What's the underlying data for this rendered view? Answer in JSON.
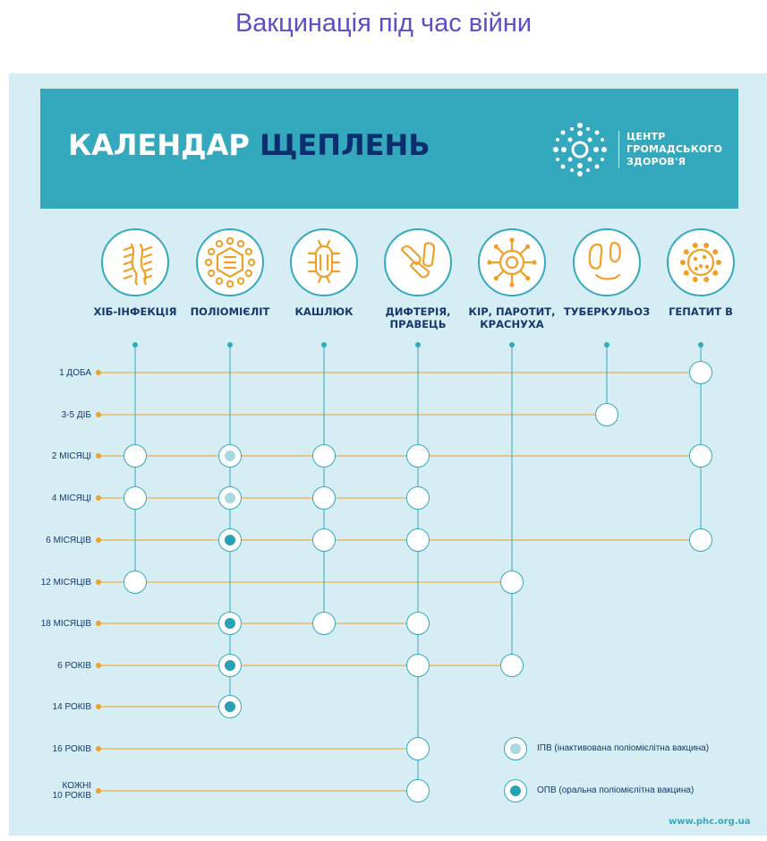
{
  "page_title": "Вакцинація під час війни",
  "header": {
    "title_part1": "КАЛЕНДАР",
    "title_part2": "ЩЕПЛЕНЬ",
    "logo_line1": "ЦЕНТР",
    "logo_line2": "ГРОМАДСЬКОГО",
    "logo_line3": "ЗДОРОВ'Я",
    "logo_icon": "phc-logo-icon"
  },
  "colors": {
    "teal": "#34a9be",
    "navy": "#0b2f6e",
    "panel": "#d6eef3",
    "orange": "#f0a027",
    "ipv_dot": "#a8d8e2",
    "opv_dot": "#2aa1b6",
    "title": "#5b4fc6"
  },
  "vaccines": [
    {
      "id": "hib",
      "label": "ХІБ-ІНФЕКЦІЯ",
      "icon": "hib-bacteria-icon"
    },
    {
      "id": "polio",
      "label": "ПОЛІОМІЄЛІТ",
      "icon": "polio-virus-icon"
    },
    {
      "id": "pertussis",
      "label": "КАШЛЮК",
      "icon": "pertussis-bacteria-icon"
    },
    {
      "id": "diphtheria",
      "label": "ДИФТЕРІЯ,\nПРАВЕЦЬ",
      "icon": "diphtheria-bacteria-icon"
    },
    {
      "id": "mmr",
      "label": "КІР, ПАРОТИТ,\nКРАСНУХА",
      "icon": "mmr-virus-icon"
    },
    {
      "id": "tb",
      "label": "ТУБЕРКУЛЬОЗ",
      "icon": "tuberculosis-bacteria-icon"
    },
    {
      "id": "hepb",
      "label": "ГЕПАТИТ В",
      "icon": "hepatitis-b-virus-icon"
    }
  ],
  "ages": [
    "1 ДОБА",
    "3-5 ДІБ",
    "2 МІСЯЦІ",
    "4 МІСЯЦІ",
    "6 МІСЯЦІВ",
    "12 МІСЯЦІВ",
    "18 МІСЯЦІВ",
    "6 РОКІВ",
    "14 РОКІВ",
    "16 РОКІВ",
    "КОЖНІ\n10 РОКІВ"
  ],
  "doses": [
    {
      "vaccine": 6,
      "age": 0,
      "type": "plain"
    },
    {
      "vaccine": 5,
      "age": 1,
      "type": "plain"
    },
    {
      "vaccine": 0,
      "age": 2,
      "type": "plain"
    },
    {
      "vaccine": 1,
      "age": 2,
      "type": "ipv"
    },
    {
      "vaccine": 2,
      "age": 2,
      "type": "plain"
    },
    {
      "vaccine": 3,
      "age": 2,
      "type": "plain"
    },
    {
      "vaccine": 6,
      "age": 2,
      "type": "plain"
    },
    {
      "vaccine": 0,
      "age": 3,
      "type": "plain"
    },
    {
      "vaccine": 1,
      "age": 3,
      "type": "ipv"
    },
    {
      "vaccine": 2,
      "age": 3,
      "type": "plain"
    },
    {
      "vaccine": 3,
      "age": 3,
      "type": "plain"
    },
    {
      "vaccine": 1,
      "age": 4,
      "type": "opv"
    },
    {
      "vaccine": 2,
      "age": 4,
      "type": "plain"
    },
    {
      "vaccine": 3,
      "age": 4,
      "type": "plain"
    },
    {
      "vaccine": 6,
      "age": 4,
      "type": "plain"
    },
    {
      "vaccine": 0,
      "age": 5,
      "type": "plain"
    },
    {
      "vaccine": 4,
      "age": 5,
      "type": "plain"
    },
    {
      "vaccine": 1,
      "age": 6,
      "type": "opv"
    },
    {
      "vaccine": 2,
      "age": 6,
      "type": "plain"
    },
    {
      "vaccine": 3,
      "age": 6,
      "type": "plain"
    },
    {
      "vaccine": 1,
      "age": 7,
      "type": "opv"
    },
    {
      "vaccine": 3,
      "age": 7,
      "type": "plain"
    },
    {
      "vaccine": 4,
      "age": 7,
      "type": "plain"
    },
    {
      "vaccine": 1,
      "age": 8,
      "type": "opv"
    },
    {
      "vaccine": 3,
      "age": 9,
      "type": "plain"
    },
    {
      "vaccine": 3,
      "age": 10,
      "type": "plain"
    }
  ],
  "legend": {
    "ipv_label": "ІПВ (інактивована поліомієлітна вакцина)",
    "opv_label": "ОПВ (оральна поліомієлітна вакцина)"
  },
  "footer": {
    "site": "www.phc.org.ua"
  }
}
